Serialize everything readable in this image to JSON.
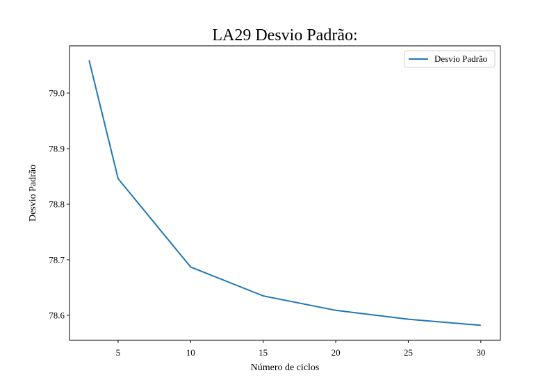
{
  "chart_data": {
    "type": "line",
    "title": "LA29 Desvio Padrão:",
    "xlabel": "Número de ciclos",
    "ylabel": "Desvio Padrão",
    "xlim": [
      1.65,
      31.35
    ],
    "ylim": [
      78.555,
      79.085
    ],
    "xticks": [
      5,
      10,
      15,
      20,
      25,
      30
    ],
    "yticks": [
      78.6,
      78.7,
      78.8,
      78.9,
      79.0
    ],
    "xtick_labels": [
      "5",
      "10",
      "15",
      "20",
      "25",
      "30"
    ],
    "ytick_labels": [
      "78.6",
      "78.7",
      "78.8",
      "78.9",
      "79.0"
    ],
    "grid": false,
    "legend_position": "upper right",
    "series": [
      {
        "name": "Desvio Padrão",
        "color": "#1f77b4",
        "x": [
          3,
          5,
          10,
          15,
          20,
          25,
          30
        ],
        "y": [
          79.059,
          78.846,
          78.687,
          78.635,
          78.609,
          78.593,
          78.582
        ]
      }
    ]
  }
}
